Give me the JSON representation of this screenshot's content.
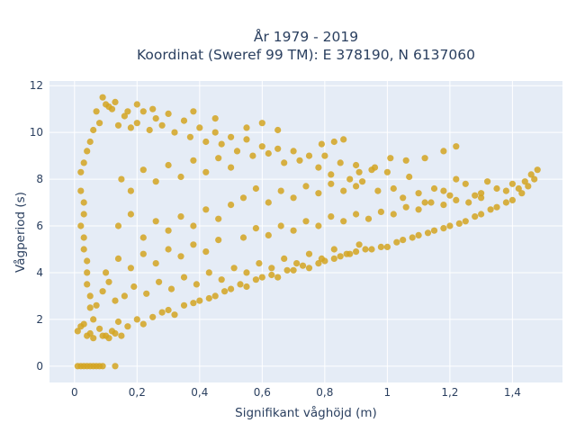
{
  "chart_data": {
    "type": "scatter",
    "title": [
      "År 1979 - 2019",
      "Koordinat (Sweref 99 TM): E 378190, N 6137060"
    ],
    "xlabel": "Signifikant våghöjd (m)",
    "ylabel": "Vågperiod (s)",
    "xlim": [
      -0.08,
      1.56
    ],
    "ylim": [
      -0.7,
      12.2
    ],
    "x_ticks": [
      0,
      0.2,
      0.4,
      0.6,
      0.8,
      1,
      1.2,
      1.4
    ],
    "x_tick_labels": [
      "0",
      "0,2",
      "0,4",
      "0,6",
      "0,8",
      "1",
      "1,2",
      "1,4"
    ],
    "y_ticks": [
      0,
      2,
      4,
      6,
      8,
      10,
      12
    ],
    "y_tick_labels": [
      "0",
      "2",
      "4",
      "6",
      "8",
      "10",
      "12"
    ],
    "grid": true,
    "legend": "none",
    "marker_color": "#d4a421",
    "plot_background": "#e5ecf6",
    "series": [
      {
        "values": [
          [
            0.01,
            1.5
          ],
          [
            0.02,
            1.7
          ],
          [
            0.03,
            1.8
          ],
          [
            0.05,
            1.4
          ],
          [
            0.06,
            2.0
          ],
          [
            0.08,
            1.6
          ],
          [
            0.1,
            1.3
          ],
          [
            0.12,
            1.5
          ],
          [
            0.14,
            1.9
          ],
          [
            0.17,
            1.7
          ],
          [
            0.2,
            2.0
          ],
          [
            0.22,
            1.8
          ],
          [
            0.25,
            2.1
          ],
          [
            0.28,
            2.3
          ],
          [
            0.3,
            2.4
          ],
          [
            0.32,
            2.2
          ],
          [
            0.35,
            2.6
          ],
          [
            0.38,
            2.7
          ],
          [
            0.4,
            2.8
          ],
          [
            0.43,
            2.9
          ],
          [
            0.45,
            3.0
          ],
          [
            0.48,
            3.2
          ],
          [
            0.5,
            3.3
          ],
          [
            0.53,
            3.5
          ],
          [
            0.55,
            3.4
          ],
          [
            0.58,
            3.7
          ],
          [
            0.6,
            3.8
          ],
          [
            0.63,
            3.9
          ],
          [
            0.65,
            3.8
          ],
          [
            0.68,
            4.1
          ],
          [
            0.7,
            4.1
          ],
          [
            0.73,
            4.3
          ],
          [
            0.75,
            4.2
          ],
          [
            0.78,
            4.4
          ],
          [
            0.8,
            4.5
          ],
          [
            0.83,
            4.6
          ],
          [
            0.85,
            4.7
          ],
          [
            0.88,
            4.8
          ],
          [
            0.9,
            4.9
          ],
          [
            0.93,
            5.0
          ],
          [
            0.95,
            5.0
          ],
          [
            0.98,
            5.1
          ],
          [
            1.0,
            5.1
          ],
          [
            1.03,
            5.3
          ],
          [
            1.05,
            5.4
          ],
          [
            1.08,
            5.5
          ],
          [
            1.1,
            5.6
          ],
          [
            1.13,
            5.7
          ],
          [
            1.15,
            5.8
          ],
          [
            1.18,
            5.9
          ],
          [
            1.2,
            6.0
          ],
          [
            1.23,
            6.1
          ],
          [
            1.25,
            6.2
          ],
          [
            1.28,
            6.4
          ],
          [
            1.3,
            6.5
          ],
          [
            1.33,
            6.7
          ],
          [
            1.35,
            6.8
          ],
          [
            1.38,
            7.0
          ],
          [
            1.4,
            7.1
          ],
          [
            1.43,
            7.4
          ],
          [
            1.45,
            7.7
          ],
          [
            1.47,
            8.0
          ],
          [
            1.48,
            8.4
          ],
          [
            1.46,
            8.2
          ],
          [
            1.44,
            7.9
          ],
          [
            1.42,
            7.6
          ],
          [
            1.4,
            7.8
          ],
          [
            1.38,
            7.5
          ],
          [
            1.35,
            7.6
          ],
          [
            1.32,
            7.9
          ],
          [
            1.3,
            7.4
          ],
          [
            1.28,
            7.3
          ],
          [
            1.25,
            7.8
          ],
          [
            1.22,
            8.0
          ],
          [
            1.2,
            7.3
          ],
          [
            1.18,
            7.5
          ],
          [
            1.15,
            7.6
          ],
          [
            1.12,
            7.0
          ],
          [
            1.1,
            7.4
          ],
          [
            1.07,
            8.1
          ],
          [
            1.05,
            7.2
          ],
          [
            1.02,
            7.6
          ],
          [
            1.0,
            8.3
          ],
          [
            0.97,
            7.5
          ],
          [
            0.95,
            8.4
          ],
          [
            0.92,
            7.9
          ],
          [
            0.9,
            8.6
          ],
          [
            0.88,
            8.0
          ],
          [
            0.85,
            8.7
          ],
          [
            0.82,
            8.2
          ],
          [
            0.8,
            9.0
          ],
          [
            0.78,
            8.5
          ],
          [
            0.75,
            9.0
          ],
          [
            0.72,
            8.8
          ],
          [
            0.7,
            9.2
          ],
          [
            0.67,
            8.7
          ],
          [
            0.65,
            9.3
          ],
          [
            0.62,
            9.1
          ],
          [
            0.6,
            9.4
          ],
          [
            0.57,
            9.0
          ],
          [
            1.18,
            9.2
          ],
          [
            1.22,
            9.4
          ],
          [
            1.12,
            8.9
          ],
          [
            1.06,
            8.8
          ],
          [
            1.01,
            8.9
          ],
          [
            0.96,
            8.5
          ],
          [
            0.91,
            8.3
          ],
          [
            0.86,
            9.7
          ],
          [
            0.83,
            9.6
          ],
          [
            0.79,
            9.5
          ],
          [
            0.55,
            9.7
          ],
          [
            0.52,
            9.2
          ],
          [
            0.5,
            9.8
          ],
          [
            0.47,
            9.5
          ],
          [
            0.45,
            10.0
          ],
          [
            0.42,
            9.6
          ],
          [
            0.4,
            10.2
          ],
          [
            0.37,
            9.8
          ],
          [
            0.35,
            10.5
          ],
          [
            0.32,
            10.0
          ],
          [
            0.3,
            10.8
          ],
          [
            0.28,
            10.3
          ],
          [
            0.26,
            10.6
          ],
          [
            0.24,
            10.1
          ],
          [
            0.22,
            10.9
          ],
          [
            0.2,
            10.4
          ],
          [
            0.18,
            10.2
          ],
          [
            0.16,
            10.7
          ],
          [
            0.14,
            10.3
          ],
          [
            0.12,
            11.0
          ],
          [
            0.1,
            11.2
          ],
          [
            0.09,
            11.5
          ],
          [
            0.08,
            10.4
          ],
          [
            0.07,
            10.9
          ],
          [
            0.06,
            10.1
          ],
          [
            0.05,
            9.6
          ],
          [
            0.04,
            9.2
          ],
          [
            0.03,
            8.7
          ],
          [
            0.02,
            8.3
          ],
          [
            0.02,
            7.5
          ],
          [
            0.6,
            10.4
          ],
          [
            0.65,
            10.1
          ],
          [
            0.55,
            10.2
          ],
          [
            0.45,
            10.6
          ],
          [
            0.38,
            10.9
          ],
          [
            0.25,
            11.0
          ],
          [
            0.2,
            11.2
          ],
          [
            0.17,
            10.9
          ],
          [
            0.13,
            11.3
          ],
          [
            0.11,
            11.1
          ],
          [
            0.03,
            7.0
          ],
          [
            0.03,
            6.5
          ],
          [
            0.02,
            6.0
          ],
          [
            0.03,
            5.5
          ],
          [
            0.03,
            5.0
          ],
          [
            0.04,
            4.5
          ],
          [
            0.04,
            4.0
          ],
          [
            0.04,
            3.5
          ],
          [
            0.05,
            3.0
          ],
          [
            0.05,
            2.5
          ],
          [
            0.15,
            8.0
          ],
          [
            0.18,
            7.5
          ],
          [
            0.22,
            8.4
          ],
          [
            0.26,
            7.9
          ],
          [
            0.3,
            8.6
          ],
          [
            0.34,
            8.1
          ],
          [
            0.38,
            8.8
          ],
          [
            0.42,
            8.3
          ],
          [
            0.46,
            8.9
          ],
          [
            0.5,
            8.5
          ],
          [
            0.14,
            6.0
          ],
          [
            0.18,
            6.5
          ],
          [
            0.22,
            5.5
          ],
          [
            0.26,
            6.2
          ],
          [
            0.3,
            5.8
          ],
          [
            0.34,
            6.4
          ],
          [
            0.38,
            6.0
          ],
          [
            0.42,
            6.7
          ],
          [
            0.46,
            6.3
          ],
          [
            0.5,
            6.9
          ],
          [
            0.1,
            4.0
          ],
          [
            0.14,
            4.6
          ],
          [
            0.18,
            4.2
          ],
          [
            0.22,
            4.8
          ],
          [
            0.26,
            4.4
          ],
          [
            0.3,
            5.0
          ],
          [
            0.34,
            4.7
          ],
          [
            0.38,
            5.2
          ],
          [
            0.42,
            4.9
          ],
          [
            0.46,
            5.4
          ],
          [
            0.54,
            7.2
          ],
          [
            0.58,
            7.6
          ],
          [
            0.62,
            7.0
          ],
          [
            0.66,
            7.5
          ],
          [
            0.7,
            7.2
          ],
          [
            0.74,
            7.7
          ],
          [
            0.78,
            7.4
          ],
          [
            0.82,
            7.8
          ],
          [
            0.86,
            7.5
          ],
          [
            0.9,
            7.7
          ],
          [
            0.54,
            5.5
          ],
          [
            0.58,
            5.9
          ],
          [
            0.62,
            5.6
          ],
          [
            0.66,
            6.0
          ],
          [
            0.7,
            5.8
          ],
          [
            0.74,
            6.2
          ],
          [
            0.78,
            6.0
          ],
          [
            0.82,
            6.4
          ],
          [
            0.86,
            6.2
          ],
          [
            0.9,
            6.5
          ],
          [
            0.94,
            6.3
          ],
          [
            0.98,
            6.6
          ],
          [
            1.02,
            6.5
          ],
          [
            1.06,
            6.8
          ],
          [
            1.1,
            6.7
          ],
          [
            1.14,
            7.0
          ],
          [
            1.18,
            6.9
          ],
          [
            1.22,
            7.1
          ],
          [
            1.26,
            7.0
          ],
          [
            1.3,
            7.2
          ],
          [
            0.01,
            0
          ],
          [
            0.02,
            0
          ],
          [
            0.03,
            0
          ],
          [
            0.04,
            0
          ],
          [
            0.05,
            0
          ],
          [
            0.06,
            0
          ],
          [
            0.07,
            0
          ],
          [
            0.08,
            0
          ],
          [
            0.09,
            0
          ],
          [
            0.13,
            0
          ],
          [
            0.06,
            1.2
          ],
          [
            0.09,
            1.3
          ],
          [
            0.11,
            1.2
          ],
          [
            0.13,
            1.4
          ],
          [
            0.15,
            1.3
          ],
          [
            0.04,
            1.3
          ],
          [
            0.07,
            2.6
          ],
          [
            0.09,
            3.2
          ],
          [
            0.11,
            3.6
          ],
          [
            0.13,
            2.8
          ],
          [
            0.16,
            3.0
          ],
          [
            0.19,
            3.4
          ],
          [
            0.23,
            3.1
          ],
          [
            0.27,
            3.6
          ],
          [
            0.31,
            3.3
          ],
          [
            0.35,
            3.8
          ],
          [
            0.39,
            3.5
          ],
          [
            0.43,
            4.0
          ],
          [
            0.47,
            3.7
          ],
          [
            0.51,
            4.2
          ],
          [
            0.55,
            4.0
          ],
          [
            0.59,
            4.4
          ],
          [
            0.63,
            4.2
          ],
          [
            0.67,
            4.6
          ],
          [
            0.71,
            4.4
          ],
          [
            0.75,
            4.8
          ],
          [
            0.79,
            4.6
          ],
          [
            0.83,
            5.0
          ],
          [
            0.87,
            4.8
          ],
          [
            0.91,
            5.2
          ]
        ]
      }
    ]
  }
}
